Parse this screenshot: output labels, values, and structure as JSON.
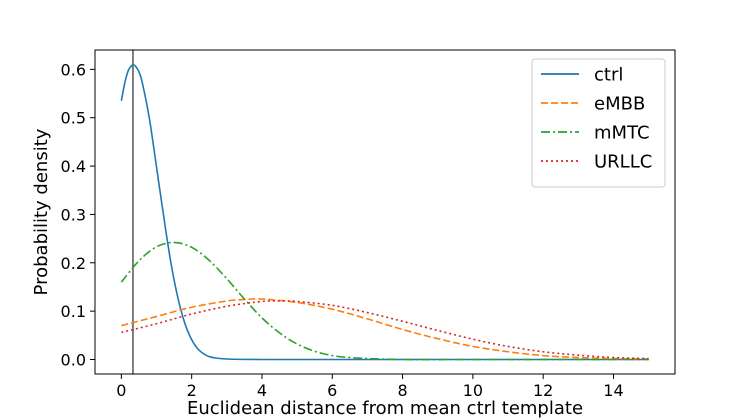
{
  "chart_data": {
    "type": "line",
    "title": "",
    "xlabel": "Euclidean distance from mean ctrl template",
    "ylabel": "Probability density",
    "xlim": [
      -0.75,
      15.75
    ],
    "ylim": [
      -0.03,
      0.64
    ],
    "xticks": [
      0,
      2,
      4,
      6,
      8,
      10,
      12,
      14
    ],
    "yticks": [
      0.0,
      0.1,
      0.2,
      0.3,
      0.4,
      0.5,
      0.6
    ],
    "xtick_labels": [
      "0",
      "2",
      "4",
      "6",
      "8",
      "10",
      "12",
      "14"
    ],
    "ytick_labels": [
      "0.0",
      "0.1",
      "0.2",
      "0.3",
      "0.4",
      "0.5",
      "0.6"
    ],
    "grid": false,
    "legend_position": "top-right",
    "vertical_line": {
      "x": 0.33,
      "color": "#555555"
    },
    "series": [
      {
        "name": "ctrl",
        "color": "#1f77b4",
        "style": "solid",
        "x": [
          0,
          0.1,
          0.2,
          0.3,
          0.35,
          0.4,
          0.5,
          0.6,
          0.8,
          1.0,
          1.2,
          1.4,
          1.6,
          1.8,
          2.0,
          2.2,
          2.5,
          3.0,
          4.0,
          6.0,
          10.0,
          15.0
        ],
        "y": [
          0.535,
          0.573,
          0.598,
          0.608,
          0.609,
          0.607,
          0.595,
          0.571,
          0.497,
          0.398,
          0.298,
          0.204,
          0.13,
          0.076,
          0.041,
          0.02,
          0.006,
          0.001,
          0.0,
          0.0,
          0.0,
          0.0
        ]
      },
      {
        "name": "eMBB",
        "color": "#ff7f0e",
        "style": "dashed",
        "x": [
          0,
          1,
          2,
          3,
          3.5,
          4,
          5,
          6,
          7,
          8,
          9,
          10,
          11,
          12,
          13,
          14,
          15
        ],
        "y": [
          0.07,
          0.089,
          0.108,
          0.121,
          0.124,
          0.125,
          0.118,
          0.104,
          0.084,
          0.062,
          0.043,
          0.027,
          0.016,
          0.008,
          0.004,
          0.002,
          0.001
        ]
      },
      {
        "name": "mMTC",
        "color": "#2ca02c",
        "style": "dashdot",
        "x": [
          0,
          0.5,
          1.0,
          1.5,
          2.0,
          2.5,
          3.0,
          3.5,
          4.0,
          4.5,
          5.0,
          5.5,
          6.0,
          6.5,
          7.0,
          8.0,
          10.0,
          15.0
        ],
        "y": [
          0.16,
          0.204,
          0.233,
          0.242,
          0.232,
          0.205,
          0.167,
          0.125,
          0.086,
          0.055,
          0.032,
          0.017,
          0.008,
          0.004,
          0.002,
          0.0,
          0.0,
          0.0
        ]
      },
      {
        "name": "URLLC",
        "color": "#d62728",
        "style": "dotted",
        "x": [
          0,
          1,
          2,
          3,
          4,
          4.5,
          5,
          6,
          7,
          8,
          9,
          10,
          11,
          12,
          13,
          14,
          15
        ],
        "y": [
          0.056,
          0.074,
          0.094,
          0.11,
          0.12,
          0.121,
          0.12,
          0.112,
          0.097,
          0.079,
          0.06,
          0.042,
          0.027,
          0.016,
          0.009,
          0.004,
          0.002
        ]
      }
    ]
  }
}
